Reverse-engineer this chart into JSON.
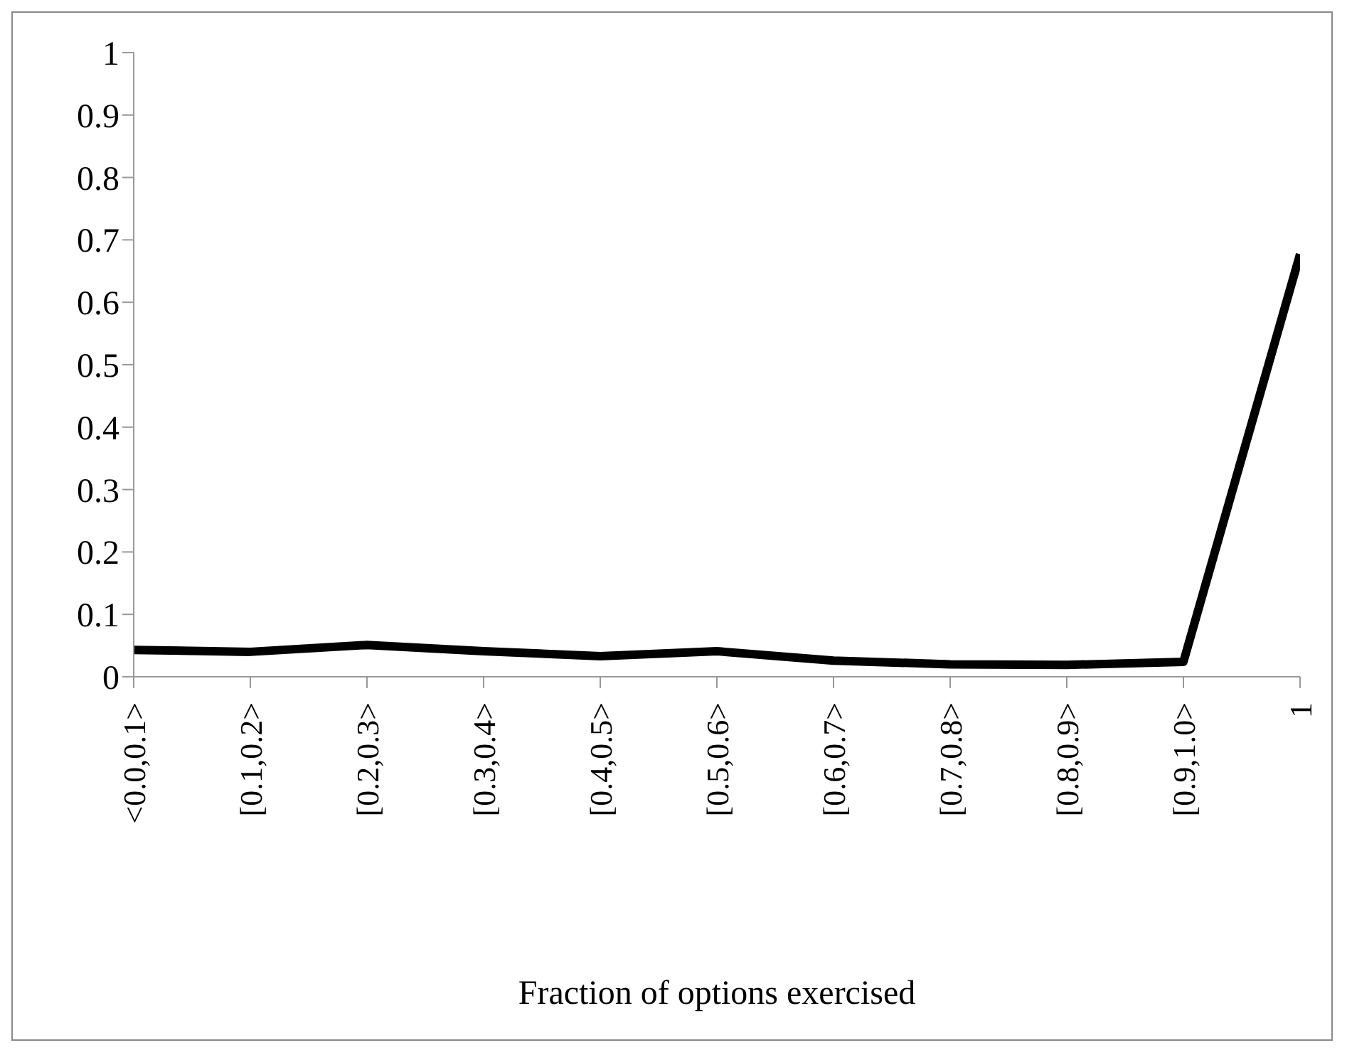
{
  "chart_data": {
    "type": "line",
    "xlabel": "Fraction of options exercised",
    "categories": [
      "<0.0,0.1>",
      "[0.1,0.2>",
      "[0.2,0.3>",
      "[0.3,0.4>",
      "[0.4,0.5>",
      "[0.5,0.6>",
      "[0.6,0.7>",
      "[0.7,0.8>",
      "[0.8,0.9>",
      "[0.9,1.0>",
      "1"
    ],
    "series": [
      {
        "color": "#000000",
        "values": [
          0.043,
          0.04,
          0.051,
          0.041,
          0.033,
          0.041,
          0.026,
          0.02,
          0.019,
          0.024,
          0.677
        ]
      }
    ],
    "ylim": [
      0,
      1
    ],
    "yticks": [
      0,
      0.1,
      0.2,
      0.3,
      0.4,
      0.5,
      0.6,
      0.7,
      0.8,
      0.9,
      1
    ],
    "grid": false,
    "legend": false,
    "marker": "none",
    "line_style": "solid"
  }
}
